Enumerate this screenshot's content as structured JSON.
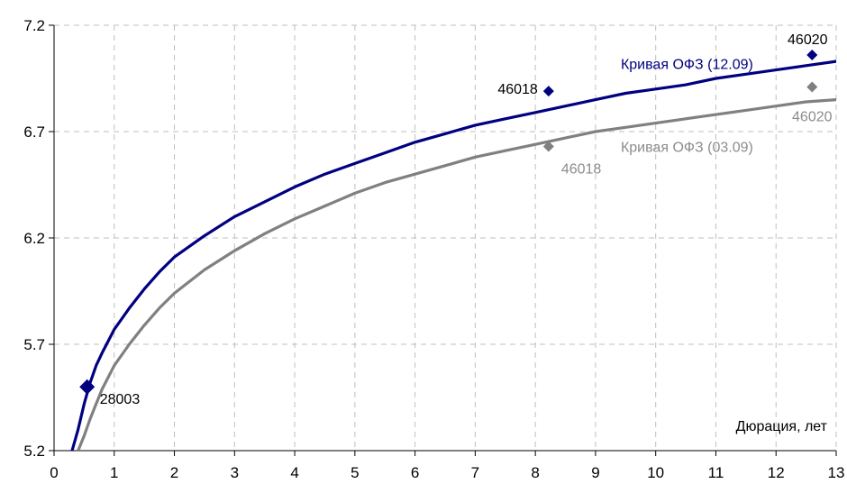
{
  "chart_data": {
    "type": "line",
    "title": "",
    "xlabel": "Дюрация, лет",
    "ylabel": "",
    "xlim": [
      0,
      13
    ],
    "ylim": [
      5.2,
      7.2
    ],
    "x_ticks": [
      "0",
      "1",
      "2",
      "3",
      "4",
      "5",
      "6",
      "7",
      "8",
      "9",
      "10",
      "11",
      "12",
      "13"
    ],
    "y_ticks": [
      "5.2",
      "5.7",
      "6.2",
      "6.7",
      "7.2"
    ],
    "grid": true,
    "legend": "inline-labels",
    "colors": {
      "curve_1209": "#000080",
      "curve_0309": "#808080"
    },
    "series": [
      {
        "name": "Кривая ОФЗ (12.09)",
        "color": "#000080",
        "x": [
          0.3,
          0.4,
          0.5,
          0.6,
          0.7,
          0.8,
          1.0,
          1.25,
          1.5,
          1.75,
          2.0,
          2.5,
          3.0,
          3.5,
          4.0,
          4.5,
          5.0,
          5.5,
          6.0,
          6.5,
          7.0,
          7.5,
          8.0,
          8.5,
          9.0,
          9.5,
          10.0,
          10.5,
          11.0,
          11.5,
          12.0,
          12.5,
          13.0
        ],
        "y": [
          5.2,
          5.3,
          5.42,
          5.52,
          5.6,
          5.66,
          5.77,
          5.87,
          5.96,
          6.04,
          6.11,
          6.21,
          6.3,
          6.37,
          6.44,
          6.5,
          6.55,
          6.6,
          6.65,
          6.69,
          6.73,
          6.76,
          6.79,
          6.82,
          6.85,
          6.88,
          6.9,
          6.92,
          6.95,
          6.97,
          6.99,
          7.01,
          7.03
        ]
      },
      {
        "name": "Кривая ОФЗ (03.09)",
        "color": "#808080",
        "x": [
          0.4,
          0.5,
          0.6,
          0.7,
          0.8,
          1.0,
          1.25,
          1.5,
          1.75,
          2.0,
          2.5,
          3.0,
          3.5,
          4.0,
          4.5,
          5.0,
          5.5,
          6.0,
          6.5,
          7.0,
          7.5,
          8.0,
          8.5,
          9.0,
          9.5,
          10.0,
          10.5,
          11.0,
          11.5,
          12.0,
          12.5,
          13.0
        ],
        "y": [
          5.2,
          5.27,
          5.35,
          5.42,
          5.49,
          5.6,
          5.7,
          5.79,
          5.87,
          5.94,
          6.05,
          6.14,
          6.22,
          6.29,
          6.35,
          6.41,
          6.46,
          6.5,
          6.54,
          6.58,
          6.61,
          6.64,
          6.67,
          6.7,
          6.72,
          6.74,
          6.76,
          6.78,
          6.8,
          6.82,
          6.84,
          6.85
        ]
      }
    ],
    "points": [
      {
        "label": "28003",
        "x": 0.55,
        "y": 5.5,
        "color": "#000080",
        "size": "large",
        "label_pos": "right"
      },
      {
        "label": "46018",
        "x": 8.22,
        "y": 6.89,
        "color": "#000080",
        "size": "small",
        "label_pos": "left"
      },
      {
        "label": "46020",
        "x": 12.6,
        "y": 7.06,
        "color": "#000080",
        "size": "small",
        "label_pos": "above"
      },
      {
        "label": "46018",
        "x": 8.22,
        "y": 6.63,
        "color": "#808080",
        "size": "small",
        "label_pos": "below-right"
      },
      {
        "label": "46020",
        "x": 12.6,
        "y": 6.91,
        "color": "#808080",
        "size": "small",
        "label_pos": "below"
      }
    ],
    "annotations": [
      {
        "text": "Кривая ОФЗ (12.09)",
        "x": 9.3,
        "y": 7.02,
        "color": "#000080"
      },
      {
        "text": "Кривая ОФЗ (03.09)",
        "x": 9.3,
        "y": 6.63,
        "color": "#808080"
      }
    ]
  }
}
